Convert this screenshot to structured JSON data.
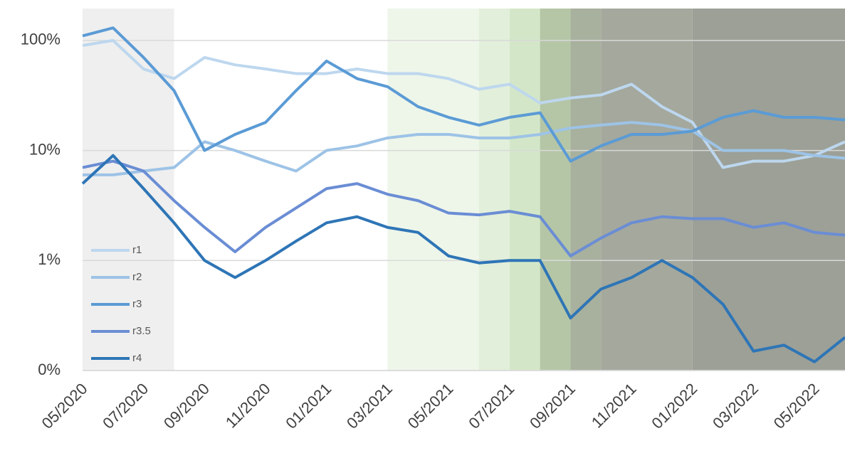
{
  "chart_data": {
    "type": "line",
    "log_scale": true,
    "grid": true,
    "legend": "lower left",
    "x": [
      "05/2020",
      "06/2020",
      "07/2020",
      "08/2020",
      "09/2020",
      "10/2020",
      "11/2020",
      "12/2020",
      "01/2021",
      "02/2021",
      "03/2021",
      "04/2021",
      "05/2021",
      "06/2021",
      "07/2021",
      "08/2021",
      "09/2021",
      "10/2021",
      "11/2021",
      "12/2021",
      "01/2022",
      "02/2022",
      "03/2022",
      "04/2022",
      "05/2022",
      "06/2022"
    ],
    "xlim": [
      "05/2020",
      "06/2022"
    ],
    "xticks": [
      "05/2020",
      "07/2020",
      "09/2020",
      "11/2020",
      "01/2021",
      "03/2021",
      "05/2021",
      "07/2021",
      "09/2021",
      "11/2021",
      "01/2022",
      "03/2022",
      "05/2022"
    ],
    "ylim": [
      0.1,
      195
    ],
    "yticks": [
      {
        "value": 0.1,
        "label": "0%"
      },
      {
        "value": 1,
        "label": "1%"
      },
      {
        "value": 10,
        "label": "10%"
      },
      {
        "value": 100,
        "label": "100%"
      }
    ],
    "shaded_regions": [
      {
        "x": [
          "05/2020",
          "08/2020"
        ],
        "color": "#efefef"
      },
      {
        "x": [
          "03/2021",
          "06/2021"
        ],
        "color": "#eef6ea"
      },
      {
        "x": [
          "06/2021",
          "07/2021"
        ],
        "color": "#e2efda"
      },
      {
        "x": [
          "07/2021",
          "08/2021"
        ],
        "color": "#d3e7c8"
      },
      {
        "x": [
          "08/2021",
          "09/2021"
        ],
        "color": "#b5c6a6"
      },
      {
        "x": [
          "09/2021",
          "10/2021"
        ],
        "color": "#a8b09e"
      },
      {
        "x": [
          "10/2021",
          "01/2022"
        ],
        "color": "#a4a89d"
      },
      {
        "x": [
          "01/2022",
          "06/2022"
        ],
        "color": "#9ca097"
      }
    ],
    "series": [
      {
        "name": "r1",
        "color": "#bdd7ee",
        "values": [
          90,
          100,
          55,
          45,
          70,
          60,
          55,
          50,
          50,
          55,
          50,
          50,
          45,
          36,
          40,
          27,
          30,
          32,
          40,
          25,
          18,
          7,
          8,
          8,
          9,
          12
        ]
      },
      {
        "name": "r2",
        "color": "#9dc3e6",
        "values": [
          6,
          6,
          6.5,
          7,
          12,
          10,
          8,
          6.5,
          10,
          11,
          13,
          14,
          14,
          13,
          13,
          14,
          16,
          17,
          18,
          17,
          15,
          10,
          10,
          10,
          9,
          8.5
        ]
      },
      {
        "name": "r3",
        "color": "#5b9bd5",
        "values": [
          110,
          130,
          70,
          35,
          10,
          14,
          18,
          35,
          65,
          45,
          38,
          25,
          20,
          17,
          20,
          22,
          8,
          11,
          14,
          14,
          15,
          20,
          23,
          20,
          20,
          19
        ]
      },
      {
        "name": "r3.5",
        "color": "#6a8dd4",
        "values": [
          7,
          8,
          6.5,
          3.5,
          2,
          1.2,
          2,
          3,
          4.5,
          5,
          4,
          3.5,
          2.7,
          2.6,
          2.8,
          2.5,
          1.1,
          1.6,
          2.2,
          2.5,
          2.4,
          2.4,
          2,
          2.2,
          1.8,
          1.7
        ]
      },
      {
        "name": "r4",
        "color": "#2e75b6",
        "values": [
          5,
          9,
          4.5,
          2.2,
          1,
          0.7,
          1,
          1.5,
          2.2,
          2.5,
          2,
          1.8,
          1.1,
          0.95,
          1,
          1,
          0.3,
          0.55,
          0.7,
          1,
          0.7,
          0.4,
          0.15,
          0.17,
          0.12,
          0.2
        ]
      }
    ]
  }
}
